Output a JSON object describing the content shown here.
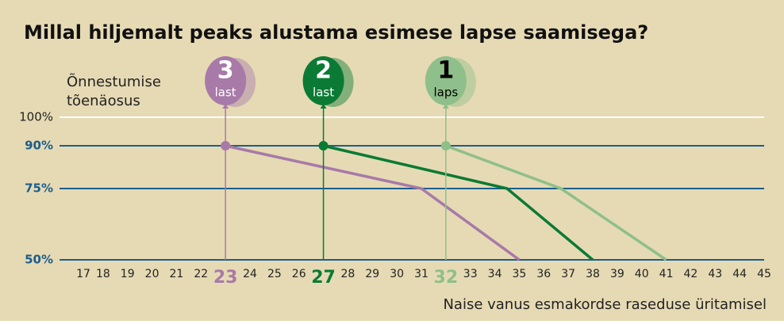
{
  "chart_data": {
    "type": "line",
    "title": "Millal hiljemalt peaks alustama esimese lapse saamisega?",
    "y_label_lines": [
      "Õnnestumise",
      "tõenäosus"
    ],
    "x_label": "Naise vanus esmakordse raseduse üritamisel",
    "xlim": [
      17,
      45
    ],
    "xticks": [
      17,
      18,
      19,
      20,
      21,
      22,
      23,
      24,
      25,
      26,
      27,
      28,
      29,
      30,
      31,
      32,
      33,
      34,
      35,
      36,
      37,
      38,
      39,
      40,
      41,
      42,
      43,
      44,
      45
    ],
    "ylim": [
      50,
      100
    ],
    "yticks": [
      {
        "value": 50,
        "label": "50%"
      },
      {
        "value": 75,
        "label": "75%"
      },
      {
        "value": 90,
        "label": "90%"
      },
      {
        "value": 100,
        "label": "100%"
      }
    ],
    "grid_color": "#1b5e8c",
    "series": [
      {
        "badge": "3",
        "name": "last",
        "color": "#a77aa8",
        "text_color": "#ffffff",
        "x": [
          23,
          31,
          35
        ],
        "values": [
          90,
          75,
          50
        ]
      },
      {
        "badge": "2",
        "name": "last",
        "color": "#0b7a35",
        "text_color": "#ffffff",
        "x": [
          27,
          34.5,
          38
        ],
        "values": [
          90,
          75,
          50
        ]
      },
      {
        "badge": "1",
        "name": "laps",
        "color": "#8fbf8a",
        "text_color": "#000000",
        "x": [
          32,
          36.7,
          41
        ],
        "values": [
          90,
          75,
          50
        ]
      }
    ]
  }
}
